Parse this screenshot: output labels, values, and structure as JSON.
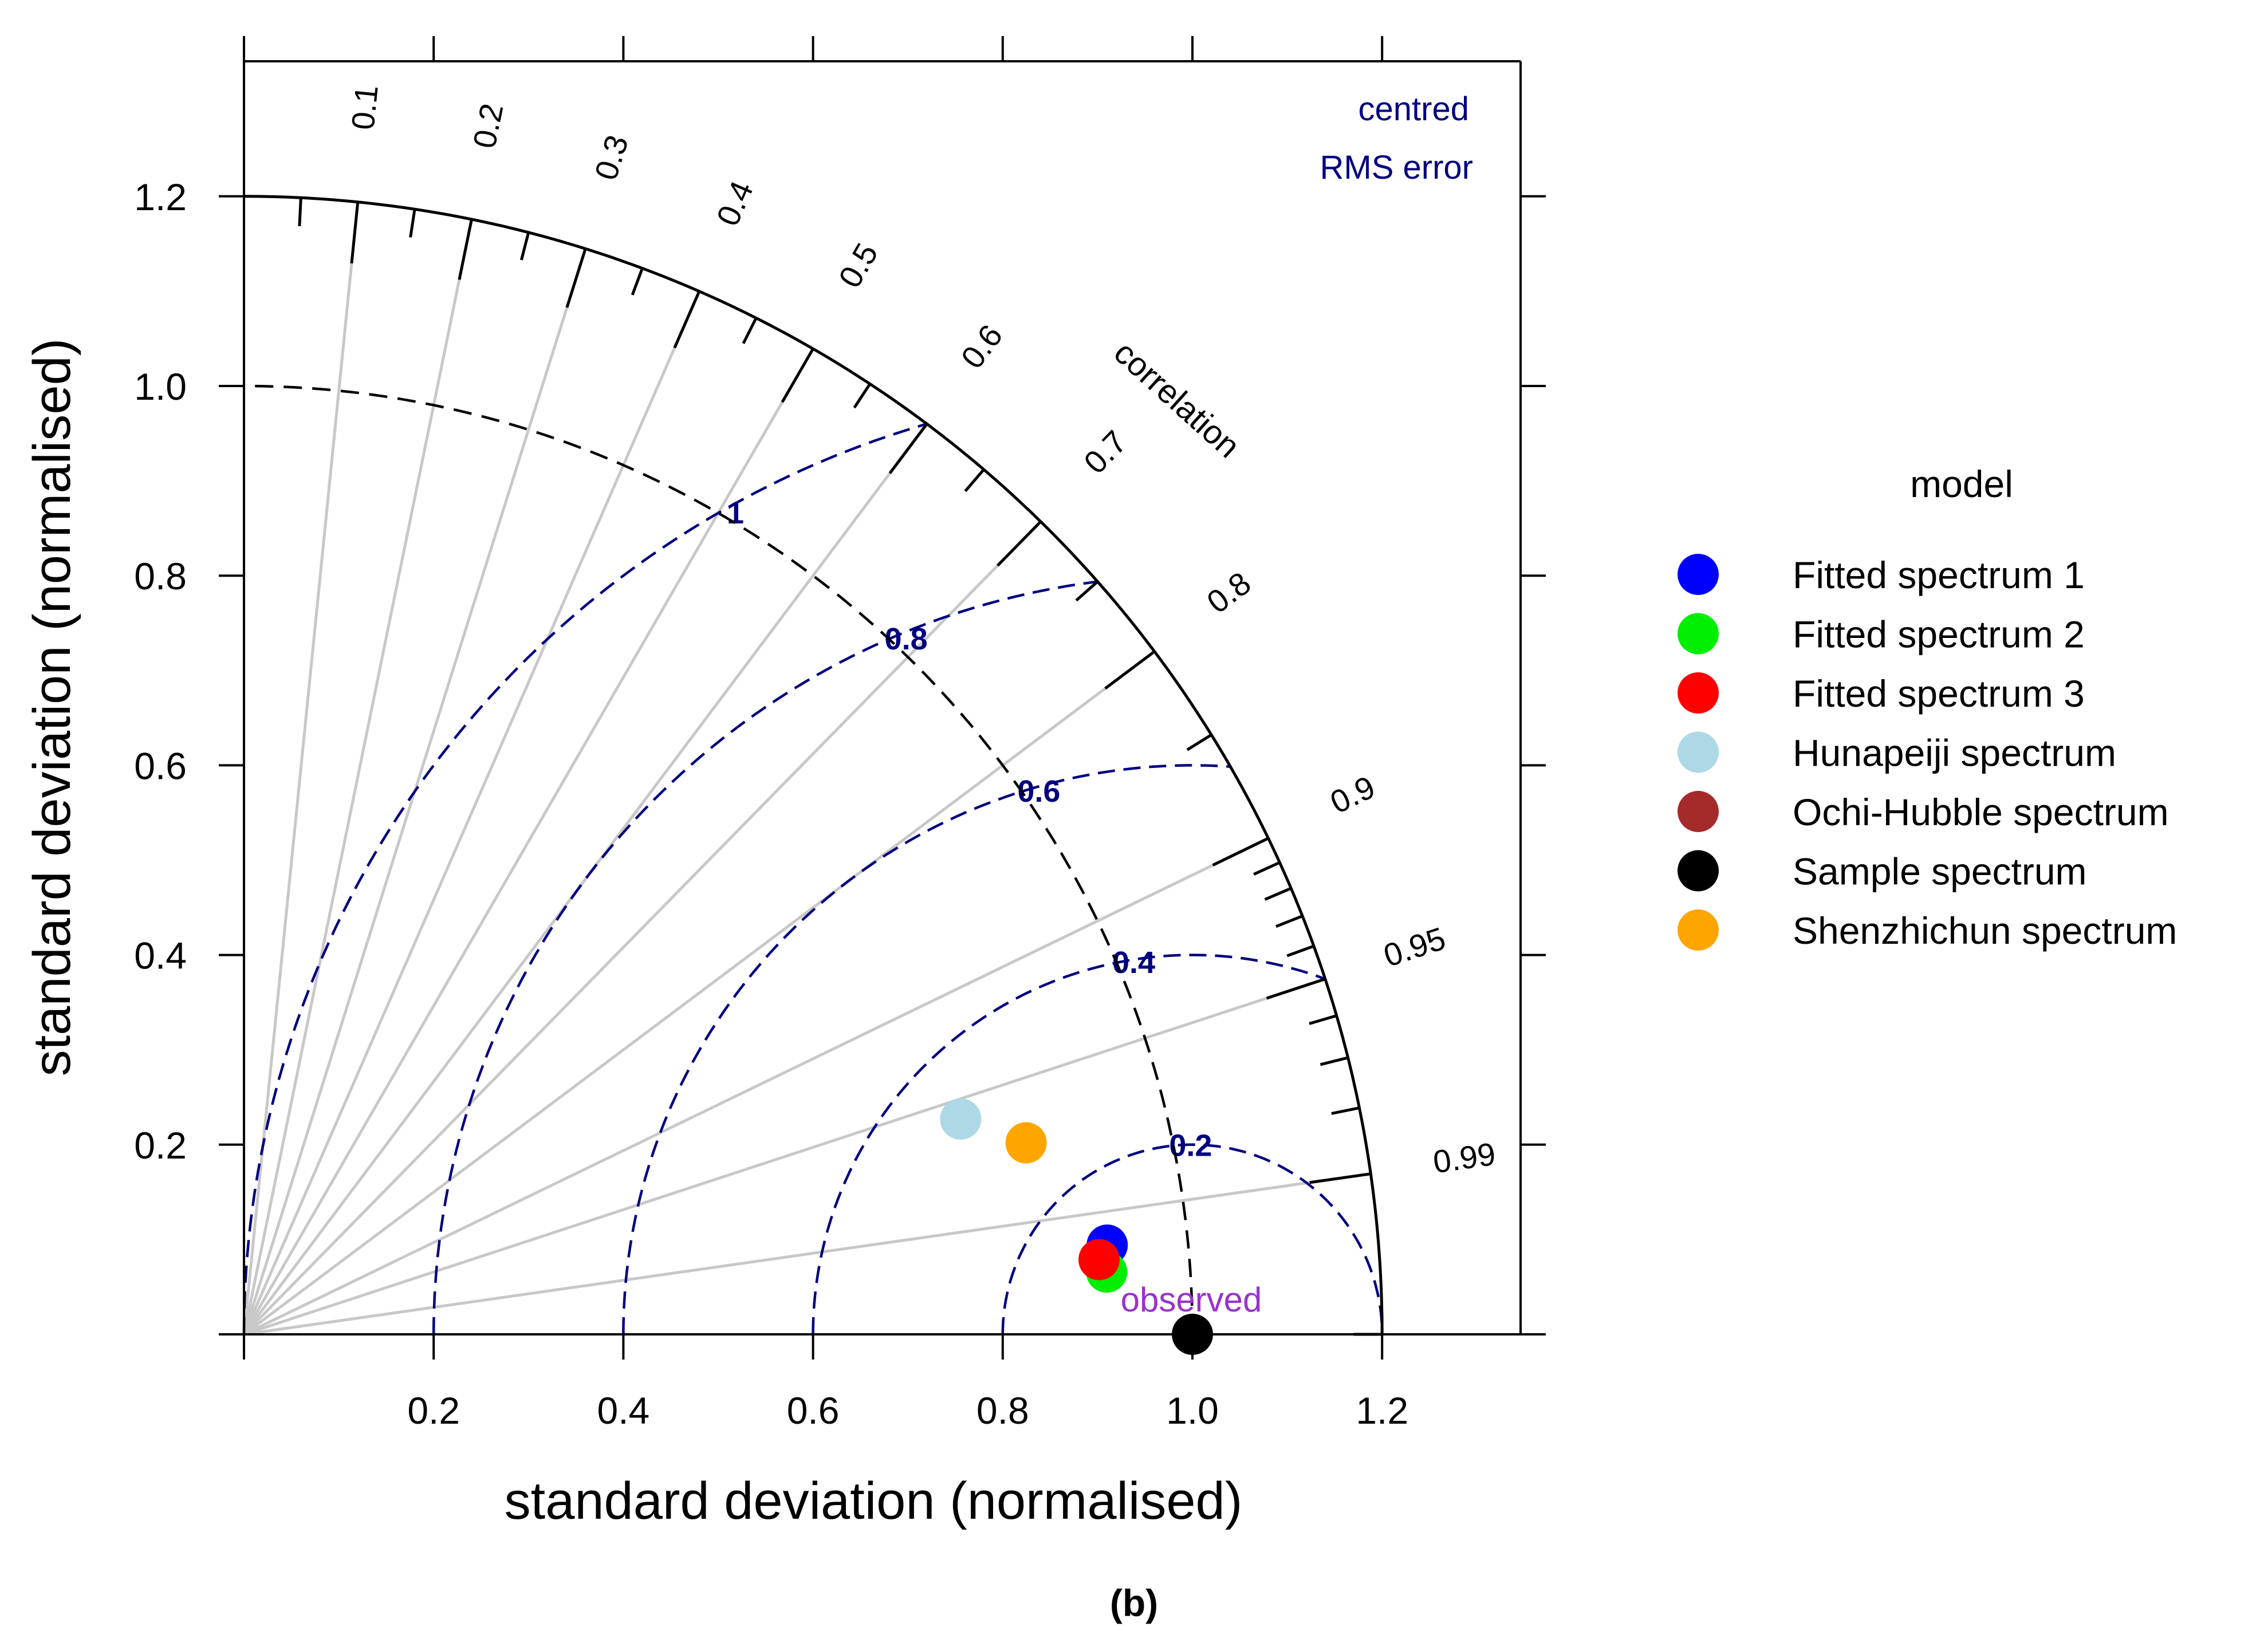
{
  "chart_data": {
    "type": "taylor-diagram",
    "xlabel": "standard deviation (normalised)",
    "ylabel": "standard deviation (normalised)",
    "xlim": [
      0,
      1.35
    ],
    "ylim": [
      0,
      1.35
    ],
    "x_ticks": [
      "0.2",
      "0.4",
      "0.6",
      "0.8",
      "1.0",
      "1.2"
    ],
    "y_ticks": [
      "0.2",
      "0.4",
      "0.6",
      "0.8",
      "1.0",
      "1.2"
    ],
    "max_sd": 1.2,
    "correlation_label": "correlation",
    "correlation_ticks": [
      "0.1",
      "0.2",
      "0.3",
      "0.4",
      "0.5",
      "0.6",
      "0.7",
      "0.8",
      "0.9",
      "0.95",
      "0.99"
    ],
    "rms_label_line1": "centred",
    "rms_label_line2": "RMS error",
    "rms_contours": [
      "0.2",
      "0.4",
      "0.6",
      "0.8",
      "1"
    ],
    "reference_sd": 1.0,
    "observed_label": "observed",
    "legend_title": "model",
    "legend_position": "right",
    "series": [
      {
        "name": "Fitted spectrum 1",
        "color": "#0000ff",
        "sd": 0.915,
        "correlation": 0.9947
      },
      {
        "name": "Fitted spectrum 2",
        "color": "#00ee00",
        "sd": 0.912,
        "correlation": 0.9974
      },
      {
        "name": "Fitted spectrum 3",
        "color": "#ff0000",
        "sd": 0.905,
        "correlation": 0.9962
      },
      {
        "name": "Hunapeiji spectrum",
        "color": "#add8e6",
        "sd": 0.789,
        "correlation": 0.9577
      },
      {
        "name": "Ochi-Hubble spectrum",
        "color": "#a52a2a",
        "sd": null,
        "correlation": null
      },
      {
        "name": "Sample spectrum",
        "color": "#000000",
        "sd": 1.0,
        "correlation": 1.0
      },
      {
        "name": "Shenzhichun spectrum",
        "color": "#ffa500",
        "sd": 0.849,
        "correlation": 0.9713
      }
    ],
    "caption": "(b)"
  },
  "colors": {
    "axis": "#000000",
    "grid": "#c8c8c8",
    "rms": "#000080",
    "observed": "#9932cc"
  }
}
